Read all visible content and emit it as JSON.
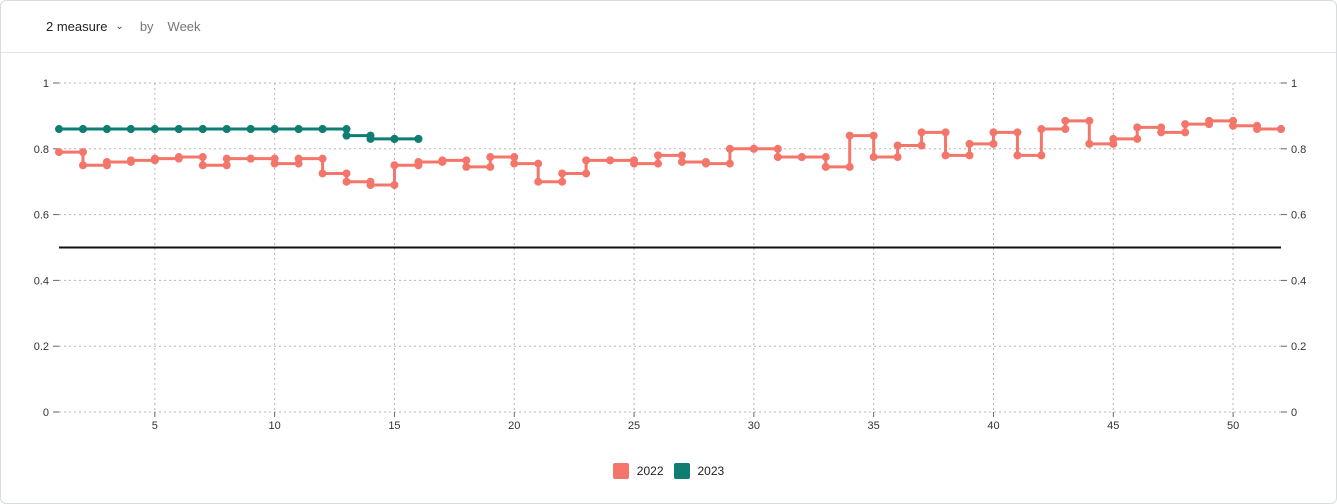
{
  "toolbar": {
    "measure_label": "2 measure",
    "by_label": "by",
    "dimension_label": "Week"
  },
  "colors": {
    "series_2022": "#f4766b",
    "series_2023": "#0f7d72",
    "threshold": "#111111",
    "grid": "#b5b5b5"
  },
  "chart_data": {
    "type": "line",
    "title": "",
    "xlabel": "",
    "ylabel": "",
    "xlim": [
      1,
      52
    ],
    "ylim": [
      0,
      1
    ],
    "x_ticks": [
      5,
      10,
      15,
      20,
      25,
      30,
      35,
      40,
      45,
      50
    ],
    "y_ticks": [
      0,
      0.2,
      0.4,
      0.6,
      0.8,
      1
    ],
    "y_tick_labels": [
      "0",
      "0.2",
      "0.4",
      "0.6",
      "0.8",
      "1"
    ],
    "right_axis": true,
    "grid": true,
    "step": true,
    "reference_line": 0.5,
    "legend_position": "bottom-center",
    "series": [
      {
        "name": "2022",
        "x": [
          1,
          2,
          3,
          4,
          5,
          6,
          7,
          8,
          9,
          10,
          11,
          12,
          13,
          14,
          15,
          16,
          17,
          18,
          19,
          20,
          21,
          22,
          23,
          24,
          25,
          26,
          27,
          28,
          29,
          30,
          31,
          32,
          33,
          34,
          35,
          36,
          37,
          38,
          39,
          40,
          41,
          42,
          43,
          44,
          45,
          46,
          47,
          48,
          49,
          50,
          51,
          52
        ],
        "values": [
          0.79,
          0.75,
          0.76,
          0.765,
          0.77,
          0.775,
          0.75,
          0.77,
          0.77,
          0.755,
          0.77,
          0.725,
          0.7,
          0.69,
          0.75,
          0.76,
          0.765,
          0.745,
          0.775,
          0.755,
          0.7,
          0.725,
          0.765,
          0.765,
          0.755,
          0.78,
          0.76,
          0.755,
          0.8,
          0.8,
          0.775,
          0.775,
          0.745,
          0.84,
          0.775,
          0.81,
          0.85,
          0.78,
          0.815,
          0.85,
          0.78,
          0.86,
          0.885,
          0.815,
          0.83,
          0.865,
          0.85,
          0.875,
          0.885,
          0.87,
          0.86,
          0.86
        ]
      },
      {
        "name": "2023",
        "x": [
          1,
          2,
          3,
          4,
          5,
          6,
          7,
          8,
          9,
          10,
          11,
          12,
          13,
          14,
          15,
          16
        ],
        "values": [
          0.86,
          0.86,
          0.86,
          0.86,
          0.86,
          0.86,
          0.86,
          0.86,
          0.86,
          0.86,
          0.86,
          0.86,
          0.84,
          0.83,
          0.83,
          0.83
        ]
      }
    ]
  },
  "legend": {
    "items": [
      {
        "label": "2022"
      },
      {
        "label": "2023"
      }
    ]
  }
}
